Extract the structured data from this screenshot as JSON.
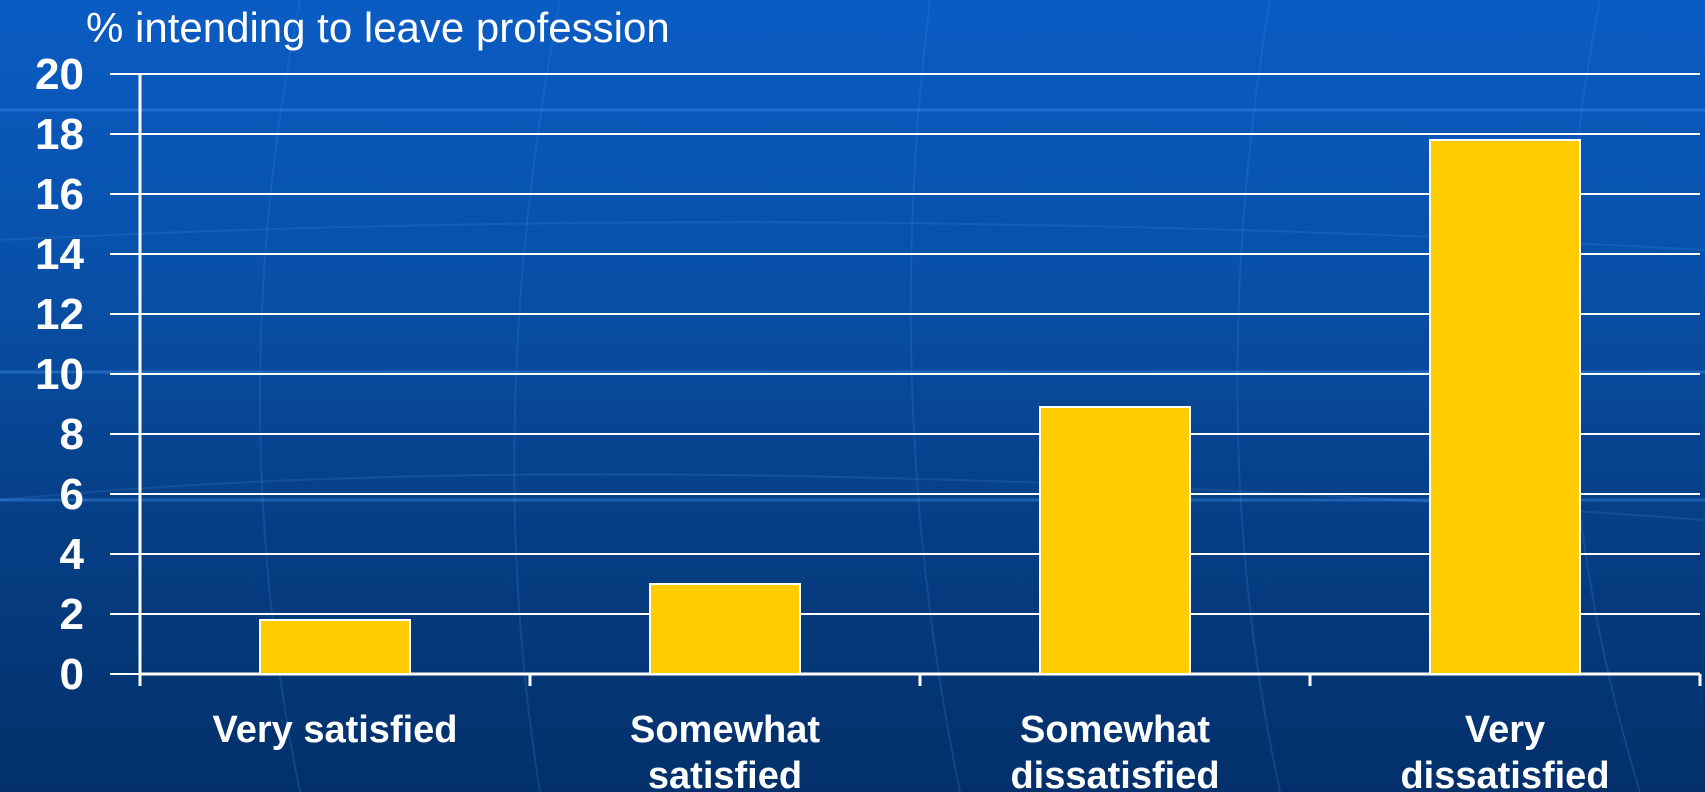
{
  "chart_data": {
    "type": "bar",
    "title": "",
    "ylabel": "% intending to leave profession",
    "xlabel": "",
    "categories": [
      [
        "Very satisfied"
      ],
      [
        "Somewhat",
        "satisfied"
      ],
      [
        "Somewhat",
        "dissatisfied"
      ],
      [
        "Very",
        "dissatisfied"
      ]
    ],
    "values": [
      1.8,
      3.0,
      8.9,
      17.8
    ],
    "ylim": [
      0,
      20
    ],
    "yticks": [
      0,
      2,
      4,
      6,
      8,
      10,
      12,
      14,
      16,
      18,
      20
    ],
    "grid": true,
    "legend": "none",
    "colors": {
      "bar": "#ffcc00",
      "bar_border": "#ffffff",
      "grid": "#ffffff",
      "text": "#ffffff",
      "background_top": "#0a5cc4",
      "background_bottom": "#03306a"
    }
  }
}
